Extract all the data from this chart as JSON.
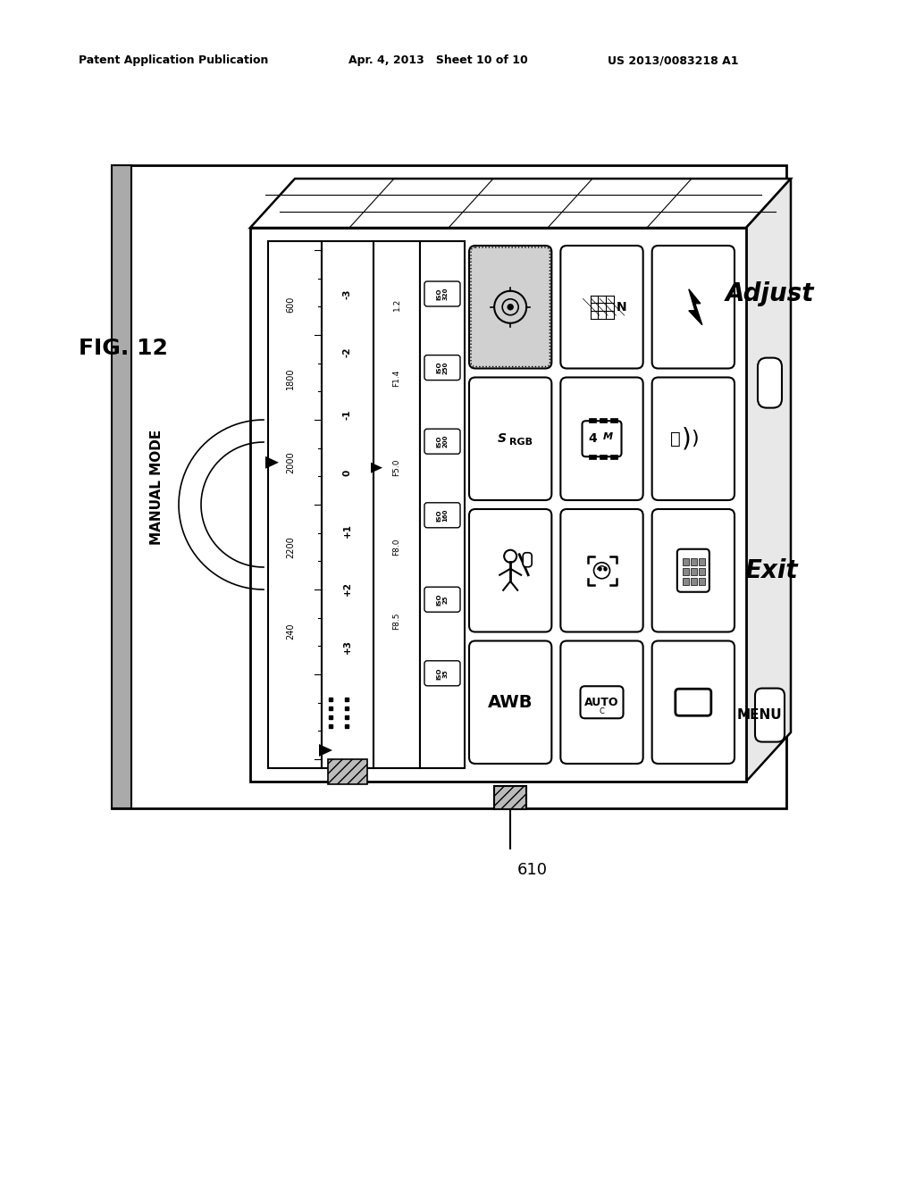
{
  "header_left": "Patent Application Publication",
  "header_mid": "Apr. 4, 2013   Sheet 10 of 10",
  "header_right": "US 2013/0083218 A1",
  "fig_label": "FIG. 12",
  "mode_label": "MANUAL MODE",
  "ref_num": "610",
  "bg_color": "#ffffff"
}
